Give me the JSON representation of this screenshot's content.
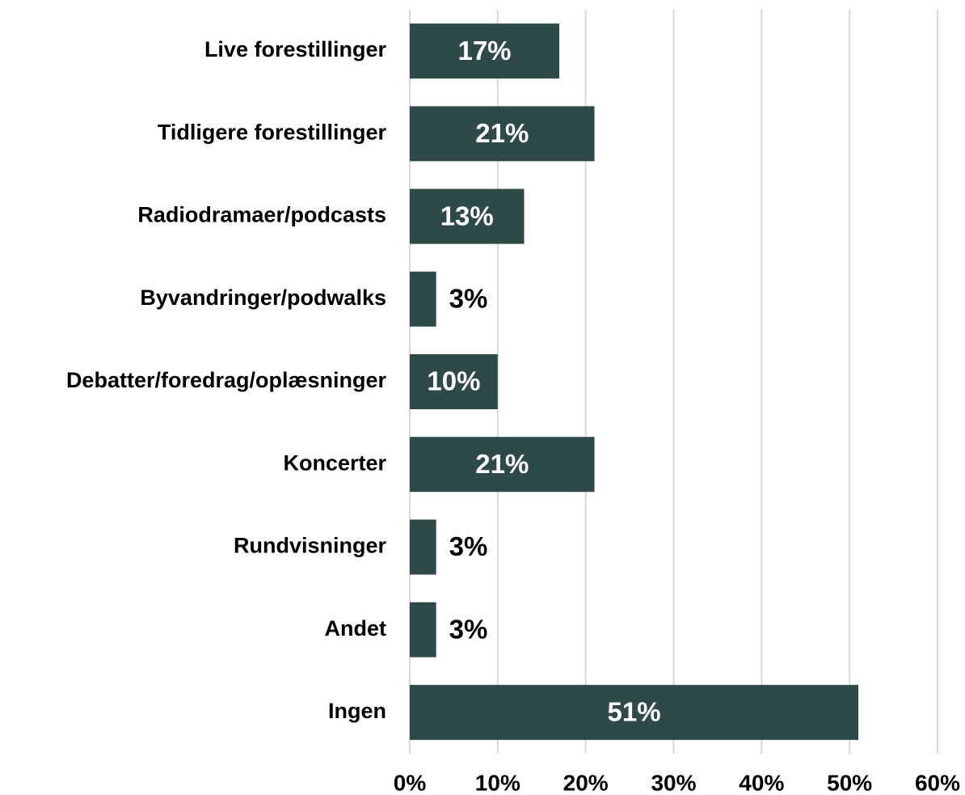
{
  "chart_data": {
    "type": "bar",
    "orientation": "horizontal",
    "categories": [
      "Live forestillinger",
      "Tidligere forestillinger",
      "Radiodramaer/podcasts",
      "Byvandringer/podwalks",
      "Debatter/foredrag/oplæsninger",
      "Koncerter",
      "Rundvisninger",
      "Andet",
      "Ingen"
    ],
    "values": [
      17,
      21,
      13,
      3,
      10,
      21,
      3,
      3,
      51
    ],
    "value_labels": [
      "17%",
      "21%",
      "13%",
      "3%",
      "10%",
      "21%",
      "3%",
      "3%",
      "51%"
    ],
    "color": "#2e4a48",
    "xlim": [
      0,
      60
    ],
    "xticks": [
      {
        "value": 0,
        "label": "0%"
      },
      {
        "value": 10,
        "label": "10%"
      },
      {
        "value": 20,
        "label": "20%"
      },
      {
        "value": 30,
        "label": "30%"
      },
      {
        "value": 40,
        "label": "40%"
      },
      {
        "value": 50,
        "label": "50%"
      },
      {
        "value": 60,
        "label": "60%"
      }
    ],
    "grid": true
  }
}
